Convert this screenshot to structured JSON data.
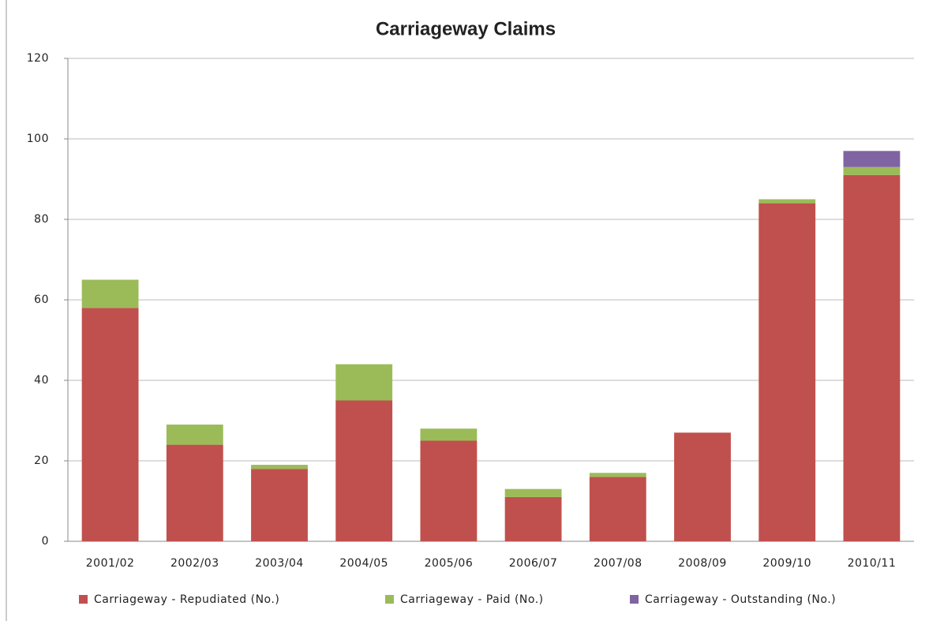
{
  "chart_data": {
    "type": "stacked_bar",
    "title": "Carriageway Claims",
    "categories": [
      "2001/02",
      "2002/03",
      "2003/04",
      "2004/05",
      "2005/06",
      "2006/07",
      "2007/08",
      "2008/09",
      "2009/10",
      "2010/11"
    ],
    "series": [
      {
        "name": "Carriageway - Repudiated (No.)",
        "color": "#c0504d",
        "values": [
          58,
          24,
          18,
          35,
          25,
          11,
          16,
          27,
          84,
          91
        ]
      },
      {
        "name": "Carriageway - Paid (No.)",
        "color": "#9bbb59",
        "values": [
          7,
          5,
          1,
          9,
          3,
          2,
          1,
          0,
          1,
          2
        ]
      },
      {
        "name": "Carriageway - Outstanding (No.)",
        "color": "#8064a2",
        "values": [
          0,
          0,
          0,
          0,
          0,
          0,
          0,
          0,
          0,
          4
        ]
      }
    ],
    "ylim": [
      0,
      120
    ],
    "yticks": [
      0,
      20,
      40,
      60,
      80,
      100,
      120
    ],
    "grid": true,
    "legend": "bottom"
  }
}
